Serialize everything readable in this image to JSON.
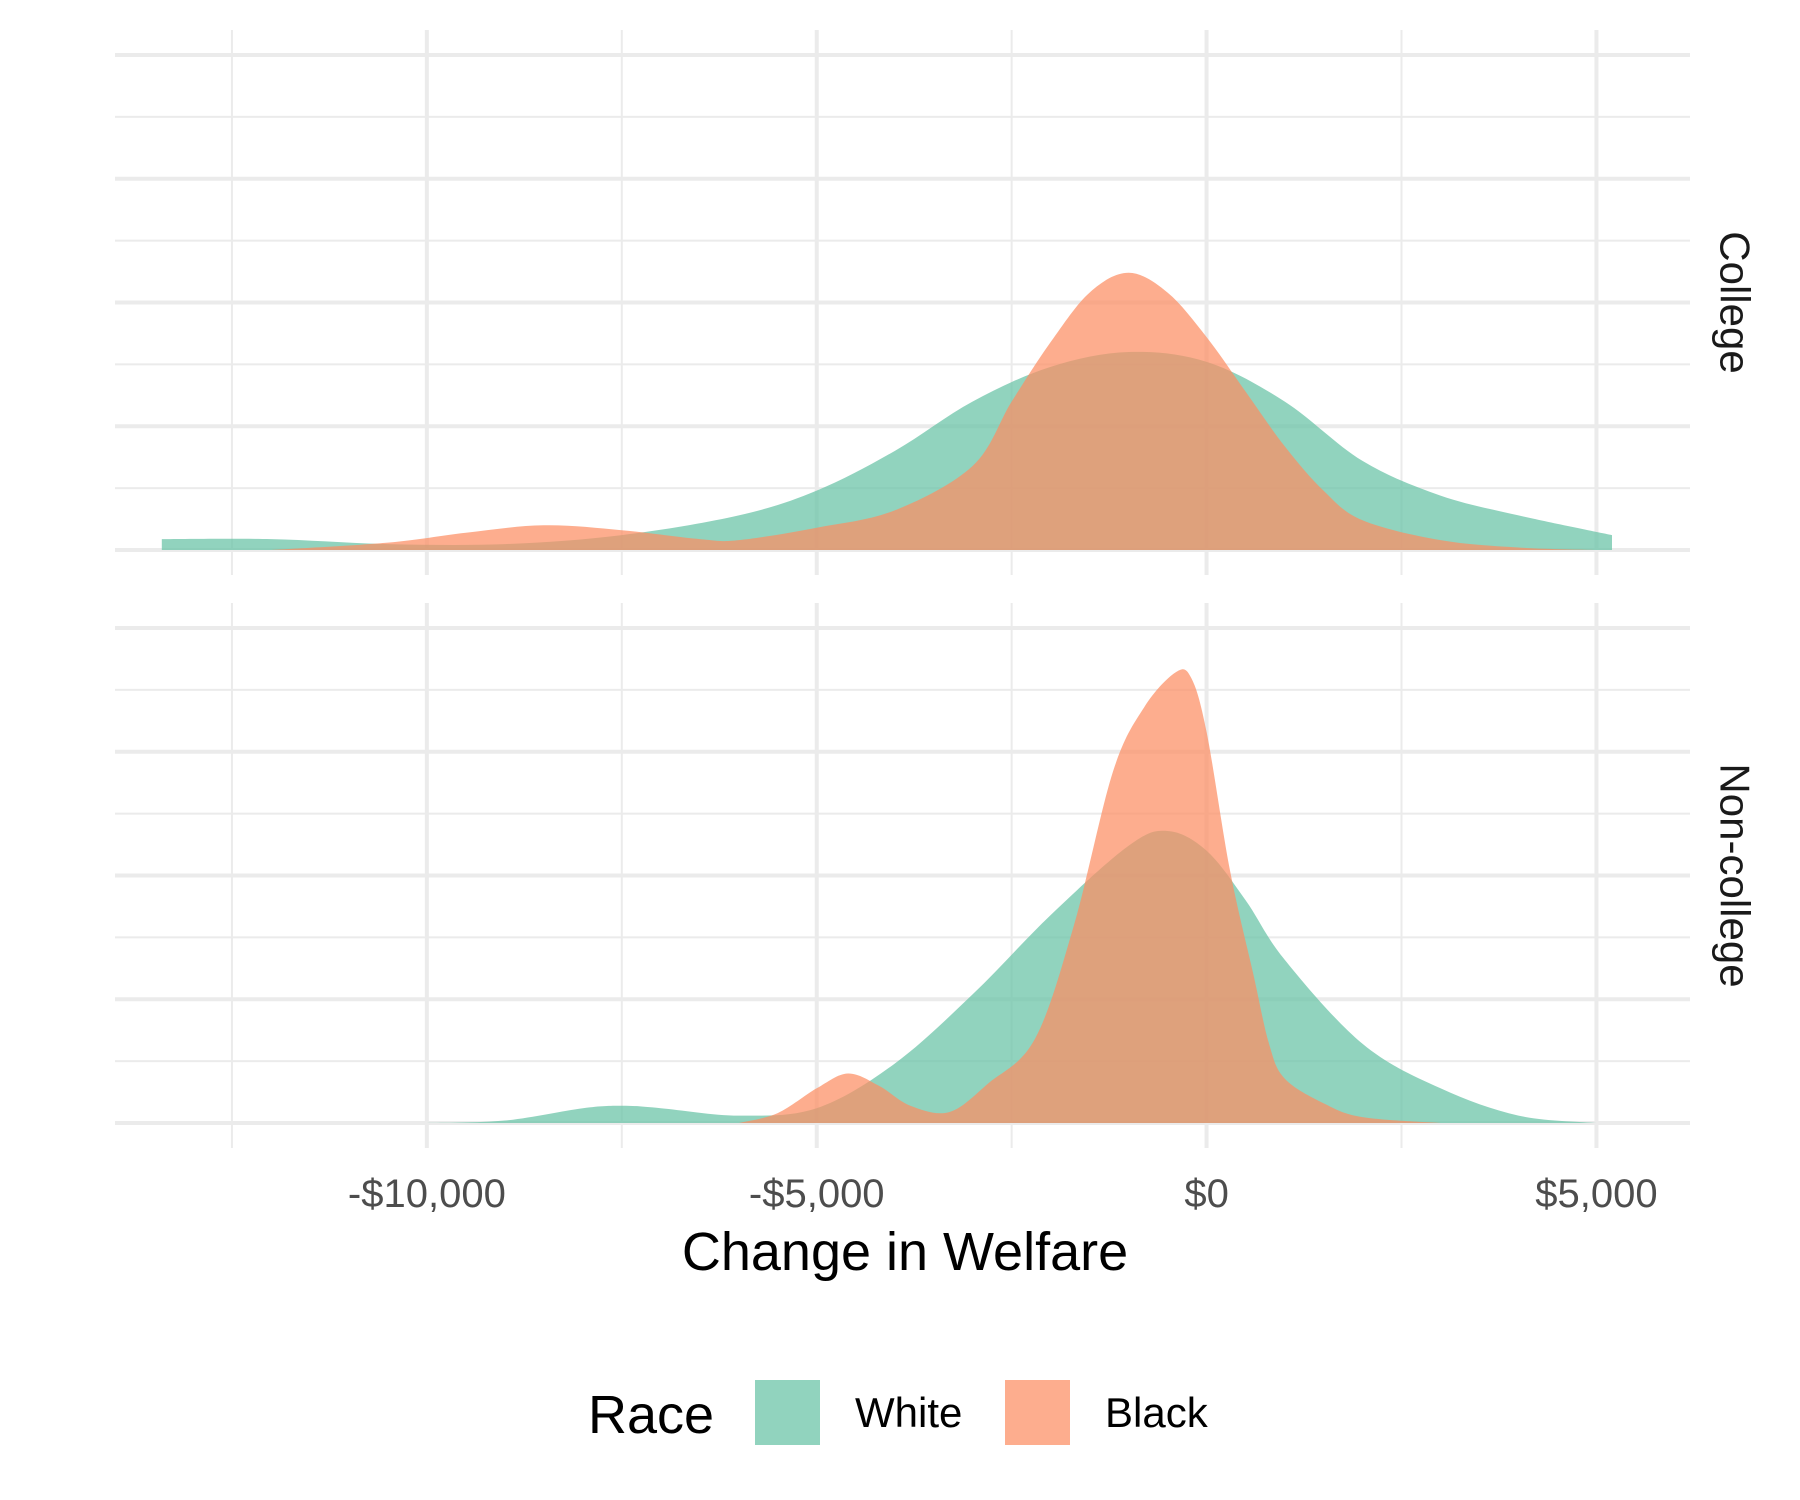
{
  "chart_data": {
    "type": "area",
    "subtype": "density",
    "xlabel": "Change in Welfare",
    "x_ticks": [
      -10000,
      -5000,
      0,
      5000
    ],
    "x_tick_labels": [
      "-$10,000",
      "-$5,000",
      "$0",
      "$5,000"
    ],
    "xlim": [
      -14000,
      6200
    ],
    "grid": true,
    "colors": {
      "White": "#66c2a5",
      "Black": "#fc8d62"
    },
    "fill_opacity": 0.72,
    "legend": {
      "title": "Race",
      "position": "bottom",
      "entries": [
        "White",
        "Black"
      ]
    },
    "panels": [
      {
        "label": "College",
        "ylim": [
          0,
          1.0
        ],
        "series": [
          {
            "name": "White",
            "x": [
              -13400,
              -12000,
              -10500,
              -9000,
              -7500,
              -6000,
              -5000,
              -4000,
              -3000,
              -2000,
              -1000,
              0,
              1000,
              2000,
              3000,
              4000,
              5200
            ],
            "values": [
              0.022,
              0.022,
              0.012,
              0.012,
              0.03,
              0.07,
              0.12,
              0.2,
              0.3,
              0.37,
              0.4,
              0.38,
              0.3,
              0.18,
              0.11,
              0.07,
              0.03
            ]
          },
          {
            "name": "Black",
            "x": [
              -12000,
              -10500,
              -9500,
              -8500,
              -7500,
              -6500,
              -6000,
              -5000,
              -4000,
              -3000,
              -2500,
              -2000,
              -1500,
              -1000,
              -500,
              0,
              500,
              1000,
              1500,
              2000,
              3000,
              4000,
              5000
            ],
            "values": [
              0.0,
              0.015,
              0.035,
              0.05,
              0.04,
              0.022,
              0.02,
              0.045,
              0.08,
              0.17,
              0.3,
              0.42,
              0.52,
              0.56,
              0.52,
              0.43,
              0.32,
              0.21,
              0.12,
              0.06,
              0.02,
              0.005,
              0.0
            ]
          }
        ]
      },
      {
        "label": "Non-college",
        "ylim": [
          0,
          1.0
        ],
        "series": [
          {
            "name": "White",
            "x": [
              -10000,
              -9000,
              -8000,
              -7500,
              -7000,
              -6000,
              -5000,
              -4000,
              -3000,
              -2000,
              -1000,
              -500,
              0,
              500,
              1000,
              2000,
              3000,
              4000,
              5000
            ],
            "values": [
              0.0,
              0.005,
              0.03,
              0.035,
              0.03,
              0.015,
              0.03,
              0.12,
              0.26,
              0.42,
              0.56,
              0.59,
              0.55,
              0.45,
              0.33,
              0.16,
              0.07,
              0.015,
              0.0
            ]
          },
          {
            "name": "Black",
            "x": [
              -6000,
              -5500,
              -5000,
              -4600,
              -4200,
              -3800,
              -3300,
              -2800,
              -2200,
              -1700,
              -1200,
              -800,
              -400,
              -200,
              0,
              300,
              600,
              800,
              1000,
              1500,
              2000,
              3000
            ],
            "values": [
              0.0,
              0.02,
              0.07,
              0.1,
              0.075,
              0.035,
              0.022,
              0.08,
              0.17,
              0.4,
              0.71,
              0.84,
              0.91,
              0.9,
              0.79,
              0.51,
              0.3,
              0.16,
              0.09,
              0.04,
              0.012,
              0.0
            ]
          }
        ]
      }
    ]
  }
}
